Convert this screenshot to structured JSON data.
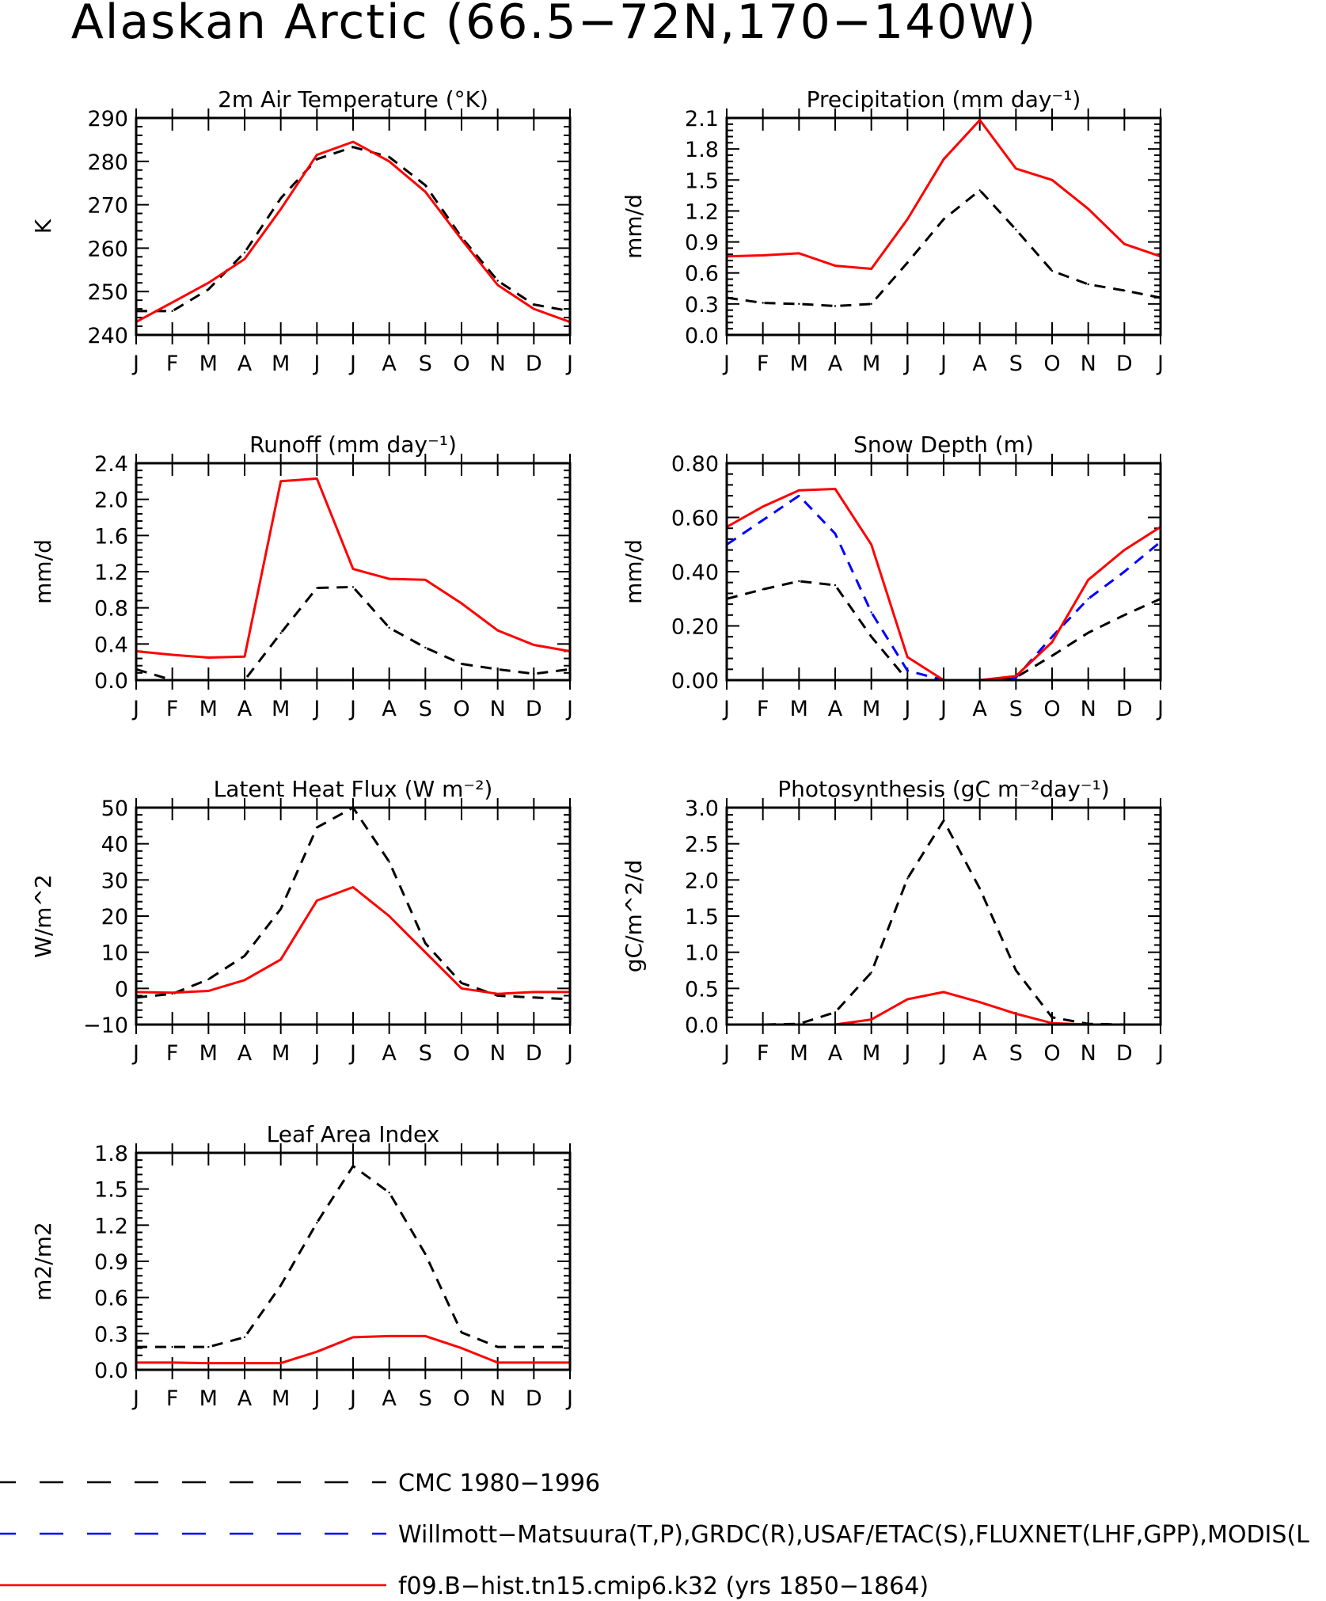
{
  "title": "Alaskan Arctic (66.5−72N,170−140W)",
  "months": [
    "J",
    "F",
    "M",
    "A",
    "M",
    "J",
    "J",
    "A",
    "S",
    "O",
    "N",
    "D",
    "J"
  ],
  "colors": {
    "cmc": "#000000",
    "obs": "#0000ff",
    "model": "#ff0000"
  },
  "legend": [
    {
      "label": "CMC 1980−1996",
      "color": "#000000",
      "dash": true
    },
    {
      "label": "Willmott−Matsuura(T,P),GRDC(R),USAF/ETAC(S),FLUXNET(LHF,GPP),MODIS(L",
      "color": "#0000ff",
      "dash": true
    },
    {
      "label": "f09.B−hist.tn15.cmip6.k32 (yrs 1850−1864)",
      "color": "#ff0000",
      "dash": false
    }
  ],
  "chart_data": [
    {
      "type": "line",
      "title": "2m Air Temperature (°K)",
      "ylabel": "K",
      "ylim": [
        240,
        290
      ],
      "yticks": [
        240,
        250,
        260,
        270,
        280,
        290
      ],
      "ytick_labels": [
        "240",
        "250",
        "260",
        "270",
        "280",
        "290"
      ],
      "series": [
        {
          "name": "CMC 1980−1996",
          "style": "dash",
          "color": "#000000",
          "values": [
            245.5,
            245.5,
            250.5,
            259,
            271.5,
            280.5,
            283.3,
            281,
            274.5,
            262.5,
            252.5,
            247,
            245.5
          ]
        },
        {
          "name": "f09.B−hist.tn15.cmip6.k32 (yrs 1850−1864)",
          "style": "solid",
          "color": "#ff0000",
          "values": [
            243,
            247.5,
            252,
            257.5,
            269,
            281.5,
            284.5,
            280,
            273,
            262,
            251.5,
            246,
            243
          ]
        }
      ]
    },
    {
      "type": "line",
      "title": "Precipitation (mm day⁻¹)",
      "ylabel": "mm/d",
      "ylim": [
        0,
        2.1
      ],
      "yticks": [
        0,
        0.3,
        0.6,
        0.9,
        1.2,
        1.5,
        1.8,
        2.1
      ],
      "ytick_labels": [
        "0.0",
        "0.3",
        "0.6",
        "0.9",
        "1.2",
        "1.5",
        "1.8",
        "2.1"
      ],
      "series": [
        {
          "name": "CMC 1980−1996",
          "style": "dash",
          "color": "#000000",
          "values": [
            0.36,
            0.31,
            0.3,
            0.28,
            0.3,
            0.7,
            1.12,
            1.4,
            1.02,
            0.62,
            0.49,
            0.43,
            0.36
          ]
        },
        {
          "name": "f09.B−hist.tn15.cmip6.k32 (yrs 1850−1864)",
          "style": "solid",
          "color": "#ff0000",
          "values": [
            0.76,
            0.77,
            0.79,
            0.67,
            0.64,
            1.12,
            1.7,
            2.08,
            1.61,
            1.5,
            1.22,
            0.88,
            0.76
          ]
        }
      ]
    },
    {
      "type": "line",
      "title": "Runoff (mm day⁻¹)",
      "ylabel": "mm/d",
      "ylim": [
        0,
        2.4
      ],
      "yticks": [
        0,
        0.4,
        0.8,
        1.2,
        1.6,
        2.0,
        2.4
      ],
      "ytick_labels": [
        "0.0",
        "0.4",
        "0.8",
        "1.2",
        "1.6",
        "2.0",
        "2.4"
      ],
      "series": [
        {
          "name": "CMC 1980−1996",
          "style": "dash",
          "color": "#000000",
          "values": [
            0.12,
            0.0,
            0.0,
            0.0,
            0.52,
            1.02,
            1.03,
            0.58,
            0.36,
            0.18,
            0.12,
            0.07,
            0.12
          ]
        },
        {
          "name": "f09.B−hist.tn15.cmip6.k32 (yrs 1850−1864)",
          "style": "solid",
          "color": "#ff0000",
          "values": [
            0.32,
            0.28,
            0.25,
            0.26,
            2.2,
            2.23,
            1.23,
            1.12,
            1.11,
            0.85,
            0.55,
            0.39,
            0.32
          ]
        }
      ]
    },
    {
      "type": "line",
      "title": "Snow Depth (m)",
      "ylabel": "mm/d",
      "ylim": [
        0,
        0.8
      ],
      "yticks": [
        0,
        0.2,
        0.4,
        0.6,
        0.8
      ],
      "ytick_labels": [
        "0.00",
        "0.20",
        "0.40",
        "0.60",
        "0.80"
      ],
      "series": [
        {
          "name": "CMC 1980−1996",
          "style": "dash",
          "color": "#000000",
          "values": [
            0.3,
            0.335,
            0.365,
            0.35,
            0.16,
            0.0,
            0.0,
            0.0,
            0.01,
            0.09,
            0.175,
            0.24,
            0.3
          ]
        },
        {
          "name": "Willmott−Matsuura(T,P),GRDC(R),USAF/ETAC(S),FLUXNET(LHF,GPP),MODIS(L",
          "style": "dash",
          "color": "#0000ff",
          "values": [
            0.5,
            0.59,
            0.68,
            0.54,
            0.25,
            0.035,
            0.0,
            0.0,
            0.01,
            0.16,
            0.3,
            0.4,
            0.51
          ]
        },
        {
          "name": "f09.B−hist.tn15.cmip6.k32 (yrs 1850−1864)",
          "style": "solid",
          "color": "#ff0000",
          "values": [
            0.565,
            0.64,
            0.7,
            0.705,
            0.5,
            0.085,
            0.0,
            0.0,
            0.015,
            0.14,
            0.37,
            0.48,
            0.565
          ]
        }
      ]
    },
    {
      "type": "line",
      "title": "Latent Heat Flux (W m⁻²)",
      "ylabel": "W/m^2",
      "ylim": [
        -10,
        50
      ],
      "yticks": [
        -10,
        0,
        10,
        20,
        30,
        40,
        50
      ],
      "ytick_labels": [
        "−10",
        "0",
        "10",
        "20",
        "30",
        "40",
        "50"
      ],
      "series": [
        {
          "name": "CMC 1980−1996",
          "style": "dash",
          "color": "#000000",
          "values": [
            -2.5,
            -1.5,
            2.5,
            9,
            22,
            44.5,
            50,
            35,
            12.5,
            1.5,
            -2,
            -2.5,
            -3
          ]
        },
        {
          "name": "f09.B−hist.tn15.cmip6.k32 (yrs 1850−1864)",
          "style": "solid",
          "color": "#ff0000",
          "values": [
            -1,
            -1.2,
            -0.7,
            2.3,
            8,
            24.3,
            28,
            20,
            10,
            0,
            -1.5,
            -1,
            -1
          ]
        }
      ]
    },
    {
      "type": "line",
      "title": "Photosynthesis (gC m⁻²day⁻¹)",
      "ylabel": "gC/m^2/d",
      "ylim": [
        0,
        3.0
      ],
      "yticks": [
        0,
        0.5,
        1.0,
        1.5,
        2.0,
        2.5,
        3.0
      ],
      "ytick_labels": [
        "0.0",
        "0.5",
        "1.0",
        "1.5",
        "2.0",
        "2.5",
        "3.0"
      ],
      "series": [
        {
          "name": "CMC 1980−1996",
          "style": "dash",
          "color": "#000000",
          "values": [
            0.0,
            0.0,
            0.01,
            0.17,
            0.72,
            2.02,
            2.82,
            1.88,
            0.75,
            0.1,
            0.01,
            0.0,
            0.0
          ]
        },
        {
          "name": "f09.B−hist.tn15.cmip6.k32 (yrs 1850−1864)",
          "style": "solid",
          "color": "#ff0000",
          "values": [
            0.0,
            0.0,
            0.0,
            0.0,
            0.07,
            0.35,
            0.45,
            0.31,
            0.15,
            0.02,
            0.0,
            0.0,
            0.0
          ]
        }
      ]
    },
    {
      "type": "line",
      "title": "Leaf Area Index",
      "ylabel": "m2/m2",
      "ylim": [
        0,
        1.8
      ],
      "yticks": [
        0,
        0.3,
        0.6,
        0.9,
        1.2,
        1.5,
        1.8
      ],
      "ytick_labels": [
        "0.0",
        "0.3",
        "0.6",
        "0.9",
        "1.2",
        "1.5",
        "1.8"
      ],
      "series": [
        {
          "name": "CMC 1980−1996",
          "style": "dash",
          "color": "#000000",
          "values": [
            0.19,
            0.19,
            0.19,
            0.27,
            0.7,
            1.22,
            1.69,
            1.47,
            0.96,
            0.31,
            0.19,
            0.19,
            0.19
          ]
        },
        {
          "name": "f09.B−hist.tn15.cmip6.k32 (yrs 1850−1864)",
          "style": "solid",
          "color": "#ff0000",
          "values": [
            0.06,
            0.06,
            0.055,
            0.055,
            0.055,
            0.15,
            0.27,
            0.28,
            0.28,
            0.18,
            0.06,
            0.06,
            0.06
          ]
        }
      ]
    }
  ]
}
